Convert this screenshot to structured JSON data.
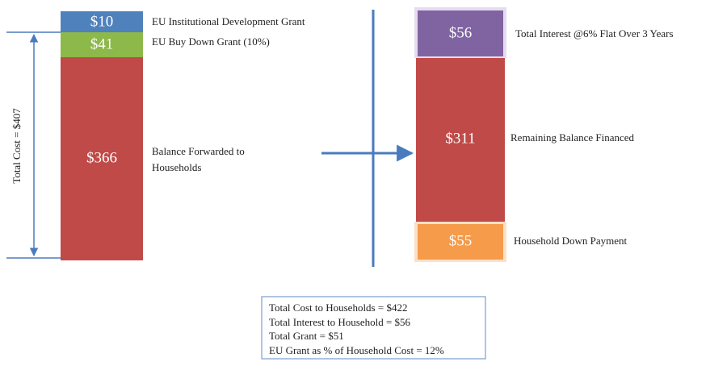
{
  "left_stack": {
    "total_label": "Total Cost = $407",
    "segments": [
      {
        "value": "$10",
        "description": "EU Institutional Development Grant"
      },
      {
        "value": "$41",
        "description": "EU Buy Down Grant (10%)"
      },
      {
        "value": "$366",
        "description": "Balance Forwarded to Households"
      }
    ]
  },
  "right_stack": {
    "segments": [
      {
        "value": "$56",
        "description": "Total Interest @6% Flat Over 3 Years"
      },
      {
        "value": "$311",
        "description": "Remaining Balance Financed"
      },
      {
        "value": "$55",
        "description": "Household Down Payment"
      }
    ]
  },
  "summary": {
    "lines": [
      "Total Cost to Households = $422",
      "Total Interest to Household = $56",
      "Total Grant = $51",
      "EU Grant as % of Household Cost = 12%"
    ]
  }
}
